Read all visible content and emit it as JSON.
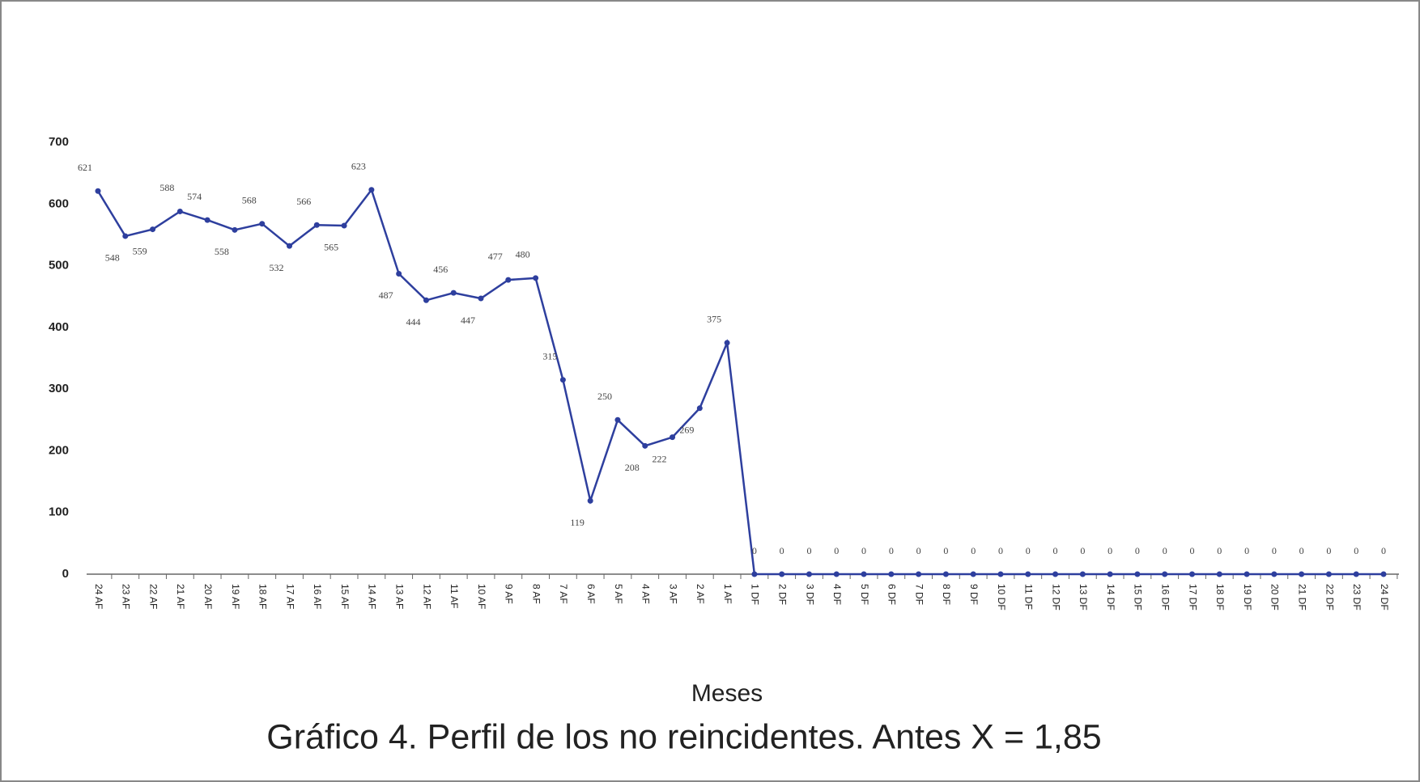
{
  "chart_data": {
    "type": "line",
    "title": "Gráfico 4. Perfil de los no reincidentes. Antes X = 1,85",
    "x_label": "Meses",
    "categories": [
      "24 AF",
      "23 AF",
      "22 AF",
      "21 AF",
      "20 AF",
      "19 AF",
      "18 AF",
      "17 AF",
      "16 AF",
      "15 AF",
      "14 AF",
      "13 AF",
      "12 AF",
      "11 AF",
      "10 AF",
      "9 AF",
      "8 AF",
      "7 AF",
      "6 AF",
      "5 AF",
      "4 AF",
      "3 AF",
      "2 AF",
      "1 AF",
      "1 DF",
      "2 DF",
      "3 DF",
      "4 DF",
      "5 DF",
      "6 DF",
      "7 DF",
      "8 DF",
      "9 DF",
      "10 DF",
      "11 DF",
      "12 DF",
      "13 DF",
      "14 DF",
      "15 DF",
      "16 DF",
      "17 DF",
      "18 DF",
      "19 DF",
      "20 DF",
      "21 DF",
      "22 DF",
      "23 DF",
      "24 DF"
    ],
    "values": [
      621,
      548,
      559,
      588,
      574,
      558,
      568,
      532,
      566,
      565,
      623,
      487,
      444,
      456,
      447,
      477,
      480,
      315,
      119,
      250,
      208,
      222,
      269,
      375,
      0,
      0,
      0,
      0,
      0,
      0,
      0,
      0,
      0,
      0,
      0,
      0,
      0,
      0,
      0,
      0,
      0,
      0,
      0,
      0,
      0,
      0,
      0,
      0
    ],
    "color": "#2e3f9e",
    "ylim": [
      0,
      700
    ],
    "yticks": [
      0,
      100,
      200,
      300,
      400,
      500,
      600,
      700
    ],
    "grid": false
  }
}
